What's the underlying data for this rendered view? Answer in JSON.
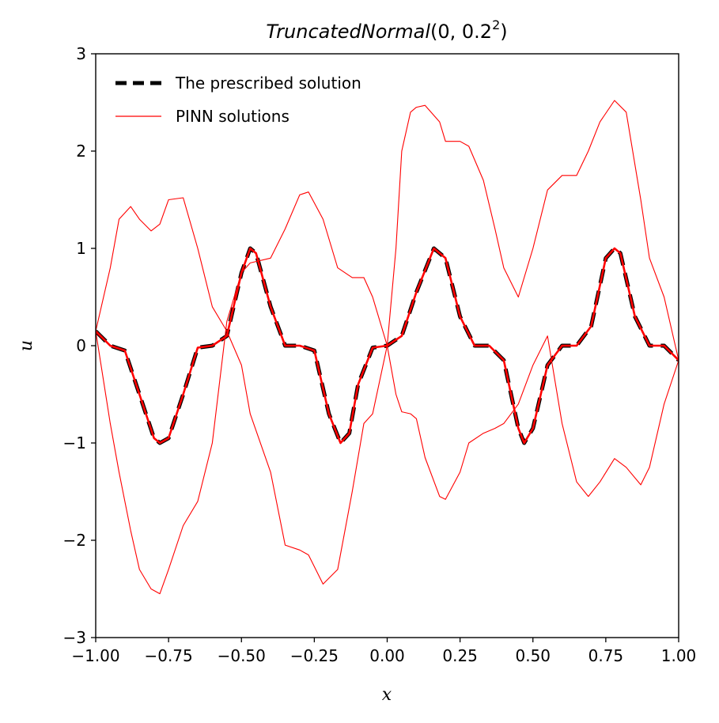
{
  "chart_data": {
    "type": "line",
    "title": {
      "name": "TruncatedNormal",
      "args": "(0, 0.2",
      "sup": "2",
      "close": ")"
    },
    "xlabel": "x",
    "ylabel": "u",
    "xlim": [
      -1.0,
      1.0
    ],
    "ylim": [
      -3,
      3
    ],
    "x_ticks": [
      -1.0,
      -0.75,
      -0.5,
      -0.25,
      0.0,
      0.25,
      0.5,
      0.75,
      1.0
    ],
    "x_tick_labels": [
      "−1.00",
      "−0.75",
      "−0.50",
      "−0.25",
      "0.00",
      "0.25",
      "0.50",
      "0.75",
      "1.00"
    ],
    "y_ticks": [
      -3,
      -2,
      -1,
      0,
      1,
      2,
      3
    ],
    "y_tick_labels": [
      "−3",
      "−2",
      "−1",
      "0",
      "1",
      "2",
      "3"
    ],
    "grid": false,
    "legend_position": "upper-left",
    "legend": [
      {
        "label": "The prescribed solution",
        "color": "#000000",
        "style": "dashed"
      },
      {
        "label": "PINN solutions",
        "color": "#ff0000",
        "style": "solid"
      }
    ],
    "series": [
      {
        "name": "The prescribed solution",
        "color": "#000000",
        "style": "dashed",
        "x": [
          -1.0,
          -0.95,
          -0.9,
          -0.85,
          -0.8,
          -0.78,
          -0.75,
          -0.7,
          -0.65,
          -0.6,
          -0.55,
          -0.5,
          -0.47,
          -0.45,
          -0.4,
          -0.35,
          -0.3,
          -0.25,
          -0.2,
          -0.16,
          -0.13,
          -0.1,
          -0.05,
          0.0,
          0.05,
          0.1,
          0.16,
          0.2,
          0.25,
          0.3,
          0.35,
          0.4,
          0.45,
          0.47,
          0.5,
          0.55,
          0.6,
          0.65,
          0.7,
          0.75,
          0.78,
          0.8,
          0.85,
          0.9,
          0.95,
          1.0
        ],
        "y": [
          0.15,
          0.0,
          -0.05,
          -0.5,
          -0.95,
          -1.0,
          -0.95,
          -0.5,
          -0.02,
          0.0,
          0.1,
          0.75,
          1.0,
          0.95,
          0.4,
          0.0,
          0.0,
          -0.05,
          -0.7,
          -1.0,
          -0.9,
          -0.4,
          -0.02,
          0.0,
          0.1,
          0.55,
          1.0,
          0.9,
          0.3,
          0.0,
          0.0,
          -0.15,
          -0.85,
          -1.0,
          -0.85,
          -0.2,
          0.0,
          0.0,
          0.2,
          0.9,
          1.0,
          0.95,
          0.3,
          0.0,
          0.0,
          -0.15
        ]
      },
      {
        "name": "PINN solutions",
        "color": "#ff0000",
        "style": "solid",
        "x": [
          -1.0,
          -0.95,
          -0.9,
          -0.85,
          -0.8,
          -0.78,
          -0.75,
          -0.7,
          -0.65,
          -0.6,
          -0.55,
          -0.5,
          -0.47,
          -0.45,
          -0.4,
          -0.35,
          -0.3,
          -0.25,
          -0.2,
          -0.16,
          -0.13,
          -0.1,
          -0.05,
          0.0,
          0.05,
          0.1,
          0.16,
          0.2,
          0.25,
          0.3,
          0.35,
          0.4,
          0.45,
          0.47,
          0.5,
          0.55,
          0.6,
          0.65,
          0.7,
          0.75,
          0.78,
          0.8,
          0.85,
          0.9,
          0.95,
          1.0
        ],
        "y": [
          0.15,
          0.0,
          -0.05,
          -0.5,
          -0.95,
          -1.0,
          -0.95,
          -0.5,
          -0.02,
          0.0,
          0.1,
          0.75,
          1.0,
          0.95,
          0.4,
          0.0,
          0.0,
          -0.05,
          -0.7,
          -1.0,
          -0.9,
          -0.4,
          -0.02,
          0.0,
          0.1,
          0.55,
          1.0,
          0.9,
          0.3,
          0.0,
          0.0,
          -0.15,
          -0.85,
          -1.0,
          -0.85,
          -0.2,
          0.0,
          0.0,
          0.2,
          0.9,
          1.0,
          0.95,
          0.3,
          0.0,
          0.0,
          -0.15
        ]
      },
      {
        "color": "#ff0000",
        "style": "solid",
        "x": [
          -1.0,
          -0.95,
          -0.92,
          -0.88,
          -0.85,
          -0.81,
          -0.78,
          -0.75,
          -0.7,
          -0.65,
          -0.6,
          -0.55,
          -0.5,
          -0.47,
          -0.4,
          -0.35,
          -0.3,
          -0.27,
          -0.22,
          -0.17,
          -0.12,
          -0.08,
          -0.05,
          0.0,
          0.03,
          0.05,
          0.08,
          0.1,
          0.13,
          0.18,
          0.2,
          0.25,
          0.28,
          0.33,
          0.37,
          0.4,
          0.45,
          0.5,
          0.55,
          0.6,
          0.65,
          0.69,
          0.73,
          0.78,
          0.82,
          0.87,
          0.9,
          0.95,
          1.0
        ],
        "y": [
          0.15,
          0.8,
          1.3,
          1.43,
          1.3,
          1.18,
          1.25,
          1.5,
          1.52,
          1.0,
          0.4,
          0.15,
          -0.2,
          -0.7,
          -1.3,
          -2.05,
          -2.1,
          -2.15,
          -2.45,
          -2.3,
          -1.5,
          -0.8,
          -0.7,
          0.0,
          -0.5,
          -0.68,
          -0.7,
          -0.75,
          -1.15,
          -1.55,
          -1.58,
          -1.3,
          -1.0,
          -0.9,
          -0.85,
          -0.8,
          -0.6,
          -0.2,
          0.1,
          -0.8,
          -1.4,
          -1.55,
          -1.4,
          -1.16,
          -1.25,
          -1.43,
          -1.25,
          -0.6,
          -0.15
        ]
      },
      {
        "color": "#ff0000",
        "style": "solid",
        "x": [
          -1.0,
          -0.95,
          -0.92,
          -0.88,
          -0.85,
          -0.81,
          -0.78,
          -0.75,
          -0.7,
          -0.65,
          -0.6,
          -0.55,
          -0.5,
          -0.47,
          -0.4,
          -0.35,
          -0.3,
          -0.27,
          -0.22,
          -0.17,
          -0.12,
          -0.08,
          -0.05,
          0.0,
          0.03,
          0.05,
          0.08,
          0.1,
          0.13,
          0.18,
          0.2,
          0.25,
          0.28,
          0.33,
          0.37,
          0.4,
          0.45,
          0.5,
          0.55,
          0.6,
          0.65,
          0.69,
          0.73,
          0.78,
          0.82,
          0.87,
          0.9,
          0.95,
          1.0
        ],
        "y": [
          0.15,
          -0.8,
          -1.3,
          -1.9,
          -2.3,
          -2.5,
          -2.55,
          -2.3,
          -1.85,
          -1.6,
          -1.0,
          0.25,
          0.75,
          0.85,
          0.9,
          1.2,
          1.55,
          1.58,
          1.3,
          0.8,
          0.7,
          0.7,
          0.5,
          0.0,
          1.0,
          2.0,
          2.4,
          2.45,
          2.47,
          2.3,
          2.1,
          2.1,
          2.05,
          1.7,
          1.2,
          0.8,
          0.5,
          1.0,
          1.6,
          1.75,
          1.75,
          2.0,
          2.3,
          2.52,
          2.4,
          1.5,
          0.9,
          0.5,
          -0.15
        ]
      }
    ]
  }
}
